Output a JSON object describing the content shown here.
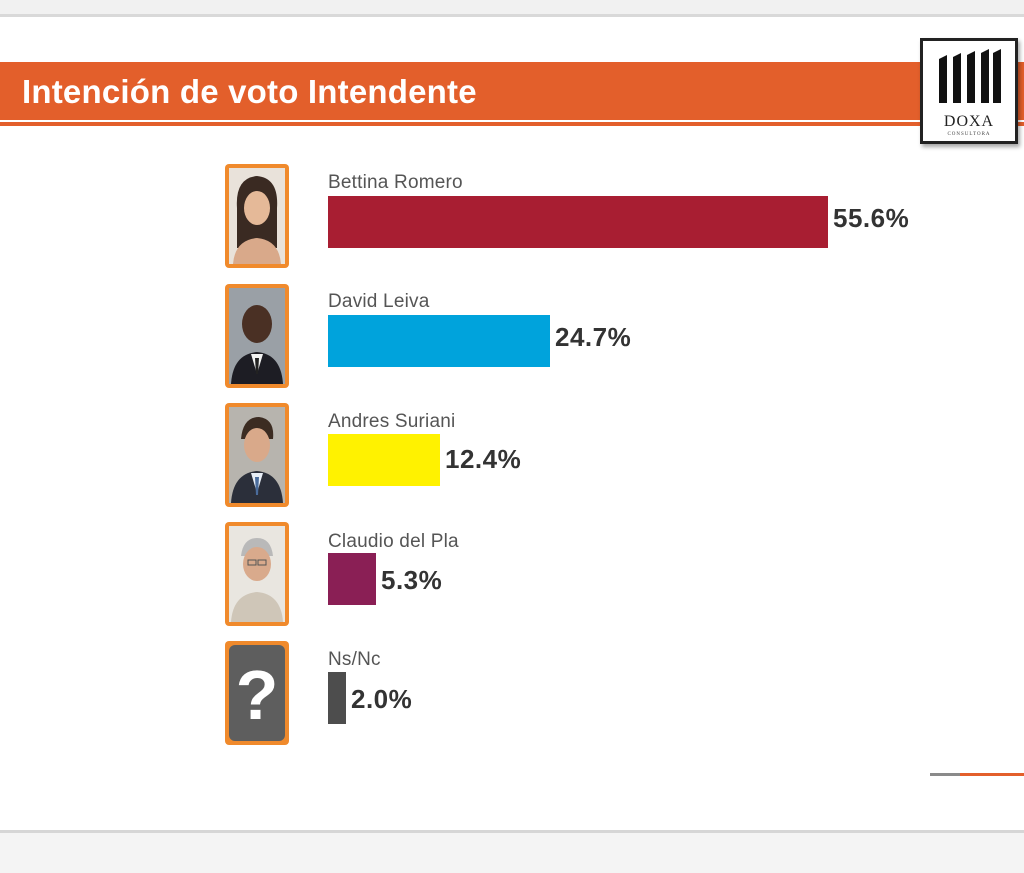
{
  "title": "Intención de voto Intendente",
  "logo": {
    "name": "DOXA",
    "subtitle": "CONSULTORA"
  },
  "chart_data": {
    "type": "bar",
    "orientation": "horizontal",
    "title": "Intención de voto Intendente",
    "categories": [
      "Bettina Romero",
      "David Leiva",
      "Andres Suriani",
      "Claudio del Pla",
      "Ns/Nc"
    ],
    "values": [
      55.6,
      24.7,
      12.4,
      5.3,
      2.0
    ],
    "value_labels": [
      "55.6%",
      "24.7%",
      "12.4%",
      "5.3%",
      "2.0%"
    ],
    "colors": [
      "#a81e32",
      "#00a3dc",
      "#fff200",
      "#8a1f55",
      "#4d4d4d"
    ],
    "unknown_icon": "question-mark-icon",
    "grid": false,
    "legend": "none"
  }
}
